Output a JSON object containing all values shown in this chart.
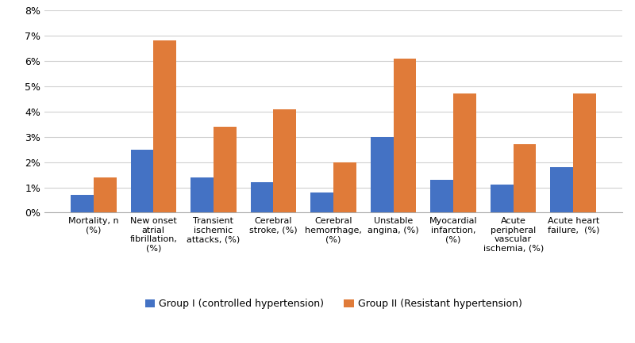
{
  "categories": [
    "Mortality, n\n(%)",
    "New onset\natrial\nfibrillation,\n(%)",
    "Transient\nischemic\nattacks, (%)",
    "Cerebral\nstroke, (%)",
    "Cerebral\nhemorrhage,\n(%)",
    "Unstable\nangina, (%)",
    "Myocardial\ninfarction,\n(%)",
    "Acute\nperipheral\nvascular\nischemia, (%)",
    "Acute heart\nfailure,  (%)"
  ],
  "group1_values": [
    0.007,
    0.025,
    0.014,
    0.012,
    0.008,
    0.03,
    0.013,
    0.011,
    0.018
  ],
  "group2_values": [
    0.014,
    0.068,
    0.034,
    0.041,
    0.02,
    0.061,
    0.047,
    0.027,
    0.047
  ],
  "group1_color": "#4472c4",
  "group2_color": "#e07b39",
  "group1_label": "Group I (controlled hypertension)",
  "group2_label": "Group II (Resistant hypertension)",
  "ylim": [
    0,
    0.08
  ],
  "yticks": [
    0.0,
    0.01,
    0.02,
    0.03,
    0.04,
    0.05,
    0.06,
    0.07,
    0.08
  ],
  "ytick_labels": [
    "0%",
    "1%",
    "2%",
    "3%",
    "4%",
    "5%",
    "6%",
    "7%",
    "8%"
  ],
  "background_color": "#ffffff",
  "grid_color": "#d0d0d0",
  "bar_width": 0.38,
  "tick_fontsize": 8.0,
  "ytick_fontsize": 9.0,
  "legend_fontsize": 9.0
}
